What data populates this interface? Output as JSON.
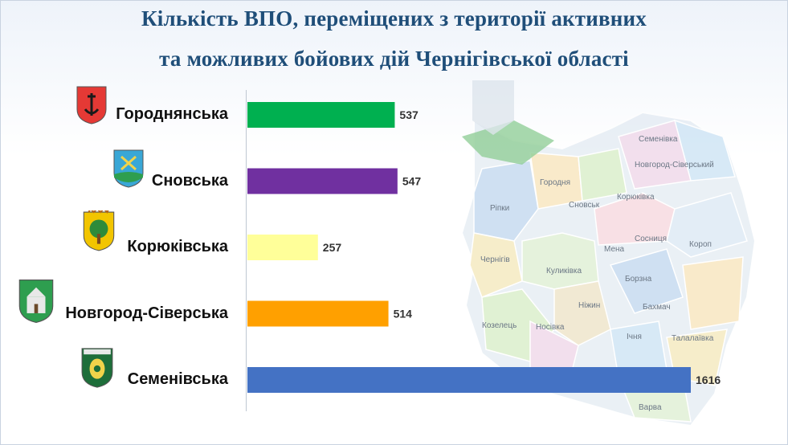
{
  "header": {
    "title_line1": "Кількість ВПО, переміщених з території активних",
    "title_line2": "та можливих бойових дій Чернігівської області"
  },
  "chart_data": {
    "type": "bar",
    "orientation": "horizontal",
    "categories": [
      "Городнянська",
      "Сновська",
      "Корюківська",
      "Новгород-Сіверська",
      "Семенівська"
    ],
    "values": [
      537,
      547,
      257,
      514,
      1616
    ],
    "colors": [
      "#00b050",
      "#7030a0",
      "#ffff99",
      "#ffa000",
      "#4472c4"
    ],
    "xlim": [
      0,
      1616
    ],
    "data_labels": true,
    "grid": false
  },
  "map": {
    "region_labels": [
      "Семенівка",
      "Новгород-Сіверський",
      "Городня",
      "Сновськ",
      "Корюківка",
      "Ріпки",
      "Чернігів",
      "Мена",
      "Сосниця",
      "Короп",
      "Куликівка",
      "Борзна",
      "Бахмач",
      "Козелець",
      "Носівка",
      "Ніжин",
      "Ічня",
      "Талалаївка",
      "Варва"
    ],
    "palette": [
      "#a9c8e8",
      "#f5d9a0",
      "#c8e6b0",
      "#e8c6e0",
      "#b8d8f0",
      "#f0e0a0",
      "#d0e8c0",
      "#f4c8d0",
      "#cde0f0",
      "#e6d8b0"
    ],
    "flag_color": "#3aa845"
  },
  "emblems": [
    {
      "name": "horodnia-coat-of-arms-icon",
      "color": "#e53935",
      "accent": "#1a1a1a"
    },
    {
      "name": "snovsk-coat-of-arms-icon",
      "color": "#39a7d6",
      "accent": "#2e9e4f"
    },
    {
      "name": "koriukivka-coat-of-arms-icon",
      "color": "#f2c500",
      "accent": "#2e8b3a"
    },
    {
      "name": "novhorod-siverskyi-coat-of-arms-icon",
      "color": "#2e9e4f",
      "accent": "#e8e8e8"
    },
    {
      "name": "semenivka-coat-of-arms-icon",
      "color": "#1e6e3a",
      "accent": "#f2d34a"
    }
  ]
}
